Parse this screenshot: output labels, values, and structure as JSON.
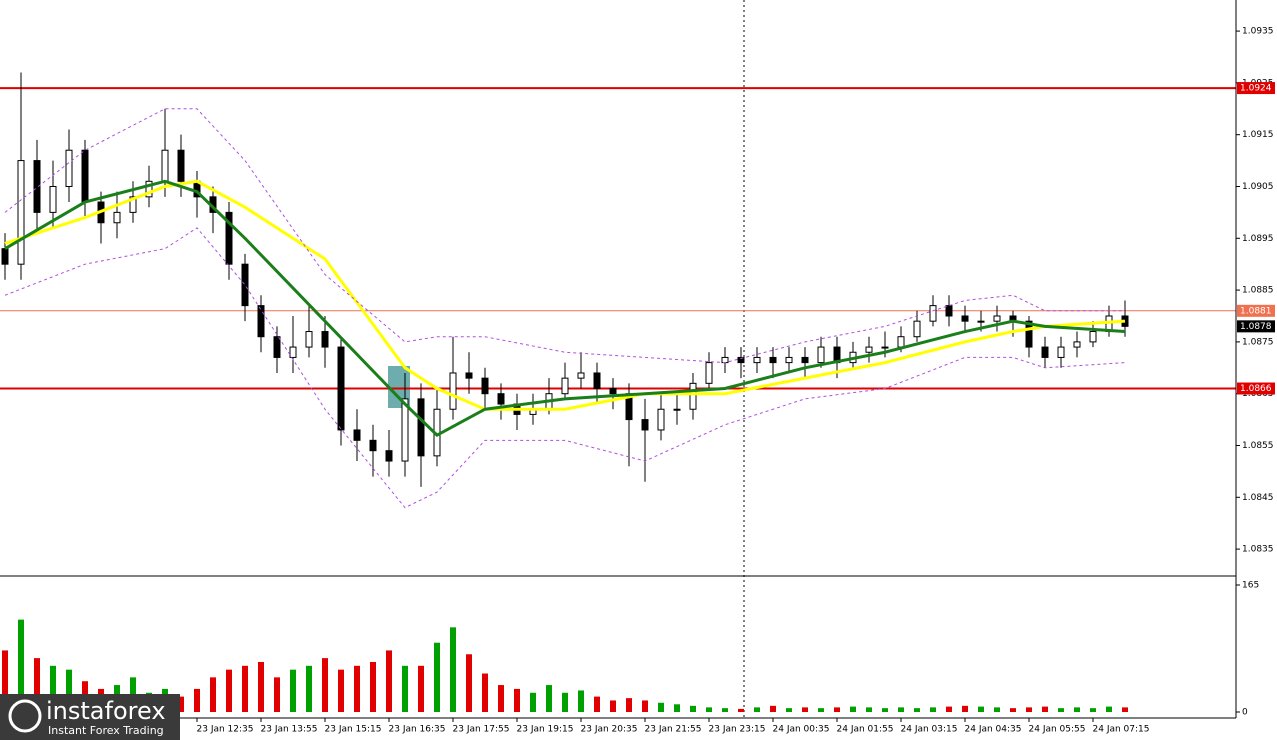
{
  "chart_data": {
    "type": "candlestick",
    "ylim": [
      1.083,
      1.0941
    ],
    "yticks": [
      1.0835,
      1.0845,
      1.0855,
      1.0865,
      1.0875,
      1.0885,
      1.0895,
      1.0905,
      1.0915,
      1.0925,
      1.0935
    ],
    "open": [
      1.0893,
      1.089,
      1.091,
      1.09,
      1.0905,
      1.0912,
      1.0902,
      1.0898,
      1.09,
      1.0903,
      1.0906,
      1.0912,
      1.0906,
      1.0903,
      1.09,
      1.089,
      1.0882,
      1.0876,
      1.0872,
      1.0874,
      1.0877,
      1.0874,
      1.0858,
      1.0856,
      1.0854,
      1.0852,
      1.0864,
      1.0853,
      1.0862,
      1.0869,
      1.0868,
      1.0865,
      1.0863,
      1.0861,
      1.0862,
      1.0865,
      1.0868,
      1.0869,
      1.0866,
      1.0865,
      1.086,
      1.0858,
      1.0862,
      1.0862,
      1.0867,
      1.0871,
      1.0872,
      1.0871,
      1.0872,
      1.0871,
      1.0872,
      1.0871,
      1.0874,
      1.0871,
      1.0873,
      1.0874,
      1.0874,
      1.0876,
      1.0879,
      1.0882,
      1.088,
      1.0879,
      1.0879,
      1.088,
      1.0879,
      1.0874,
      1.0872,
      1.0874,
      1.0875,
      1.0877,
      1.088
    ],
    "high": [
      1.0896,
      1.0927,
      1.0914,
      1.091,
      1.0916,
      1.0914,
      1.0904,
      1.0904,
      1.0906,
      1.0909,
      1.092,
      1.0915,
      1.0908,
      1.0905,
      1.0902,
      1.0892,
      1.0884,
      1.0878,
      1.088,
      1.0882,
      1.088,
      1.0876,
      1.0862,
      1.0859,
      1.0858,
      1.0869,
      1.0867,
      1.0866,
      1.0876,
      1.0873,
      1.087,
      1.0867,
      1.0865,
      1.0865,
      1.0868,
      1.0871,
      1.0873,
      1.0871,
      1.0868,
      1.0867,
      1.0864,
      1.0865,
      1.0865,
      1.0869,
      1.0873,
      1.0874,
      1.0874,
      1.0874,
      1.0874,
      1.0874,
      1.0874,
      1.0876,
      1.0876,
      1.0875,
      1.0876,
      1.0877,
      1.0878,
      1.0881,
      1.0884,
      1.0884,
      1.0882,
      1.0881,
      1.0882,
      1.0881,
      1.088,
      1.0876,
      1.0876,
      1.0877,
      1.0879,
      1.0882,
      1.0883
    ],
    "low": [
      1.0887,
      1.0887,
      1.0896,
      1.0897,
      1.0902,
      1.0899,
      1.0894,
      1.0895,
      1.0898,
      1.0901,
      1.0903,
      1.0903,
      1.0899,
      1.0896,
      1.0887,
      1.0879,
      1.0873,
      1.0869,
      1.0869,
      1.0872,
      1.087,
      1.0855,
      1.0852,
      1.0849,
      1.0849,
      1.0849,
      1.0847,
      1.0851,
      1.086,
      1.0865,
      1.0862,
      1.086,
      1.0858,
      1.0859,
      1.0861,
      1.0864,
      1.0866,
      1.0863,
      1.0862,
      1.0851,
      1.0848,
      1.0856,
      1.0859,
      1.086,
      1.0866,
      1.0869,
      1.0868,
      1.0869,
      1.0868,
      1.0869,
      1.0868,
      1.087,
      1.0868,
      1.087,
      1.0871,
      1.0872,
      1.0873,
      1.0875,
      1.0878,
      1.0878,
      1.0877,
      1.0877,
      1.0877,
      1.0876,
      1.0872,
      1.087,
      1.087,
      1.0872,
      1.0874,
      1.0876,
      1.0876
    ],
    "close": [
      1.089,
      1.091,
      1.09,
      1.0905,
      1.0912,
      1.0902,
      1.0898,
      1.09,
      1.0903,
      1.0906,
      1.0912,
      1.0906,
      1.0903,
      1.09,
      1.089,
      1.0882,
      1.0876,
      1.0872,
      1.0874,
      1.0877,
      1.0874,
      1.0858,
      1.0856,
      1.0854,
      1.0852,
      1.0864,
      1.0853,
      1.0862,
      1.0869,
      1.0868,
      1.0865,
      1.0863,
      1.0861,
      1.0862,
      1.0865,
      1.0868,
      1.0869,
      1.0866,
      1.0865,
      1.086,
      1.0858,
      1.0862,
      1.0862,
      1.0867,
      1.0871,
      1.0872,
      1.0871,
      1.0872,
      1.0871,
      1.0872,
      1.0871,
      1.0874,
      1.0871,
      1.0873,
      1.0874,
      1.0874,
      1.0876,
      1.0879,
      1.0882,
      1.088,
      1.0879,
      1.0879,
      1.088,
      1.0879,
      1.0874,
      1.0872,
      1.0874,
      1.0875,
      1.0877,
      1.088,
      1.0878
    ],
    "volume": {
      "values": [
        80,
        120,
        70,
        60,
        55,
        40,
        30,
        35,
        45,
        25,
        30,
        20,
        30,
        45,
        55,
        60,
        65,
        45,
        55,
        60,
        70,
        55,
        60,
        65,
        80,
        60,
        60,
        90,
        110,
        75,
        50,
        35,
        30,
        25,
        35,
        25,
        28,
        20,
        15,
        18,
        15,
        12,
        10,
        8,
        6,
        5,
        4,
        6,
        8,
        5,
        6,
        5,
        6,
        7,
        6,
        5,
        6,
        5,
        6,
        7,
        8,
        7,
        6,
        5,
        6,
        7,
        5,
        6,
        5,
        7,
        6
      ],
      "ylim": [
        0,
        165
      ],
      "yticks": [
        0,
        165
      ],
      "up_color": "#00a000",
      "down_color": "#e00000"
    },
    "lines": [
      {
        "color": "#ffff00",
        "width": 3,
        "dash": false,
        "x": [
          0,
          5,
          10,
          12,
          15,
          20,
          25,
          27,
          30,
          35,
          40,
          45,
          50,
          55,
          60,
          63,
          65,
          70
        ],
        "values": [
          1.0894,
          1.0899,
          1.0905,
          1.0906,
          1.0901,
          1.0891,
          1.087,
          1.0866,
          1.0862,
          1.0862,
          1.0865,
          1.0865,
          1.0868,
          1.0871,
          1.0875,
          1.0877,
          1.0878,
          1.0879
        ]
      },
      {
        "color": "#1a7f1a",
        "width": 3,
        "dash": false,
        "x": [
          0,
          5,
          10,
          12,
          15,
          20,
          25,
          27,
          30,
          35,
          40,
          45,
          50,
          55,
          60,
          63,
          65,
          70
        ],
        "values": [
          1.0893,
          1.0902,
          1.0906,
          1.0904,
          1.0895,
          1.0879,
          1.0863,
          1.0857,
          1.0862,
          1.0864,
          1.0865,
          1.0866,
          1.087,
          1.0873,
          1.0877,
          1.0879,
          1.0878,
          1.0877
        ]
      },
      {
        "color": "#b04fe0",
        "width": 1,
        "dash": true,
        "x": [
          0,
          5,
          10,
          12,
          15,
          20,
          25,
          27,
          30,
          35,
          40,
          45,
          50,
          55,
          60,
          63,
          65,
          70
        ],
        "values": [
          1.09,
          1.0912,
          1.092,
          1.092,
          1.091,
          1.0888,
          1.0875,
          1.0876,
          1.0876,
          1.0873,
          1.0872,
          1.0871,
          1.0875,
          1.0878,
          1.0883,
          1.0884,
          1.0881,
          1.0881
        ]
      },
      {
        "color": "#b04fe0",
        "width": 1,
        "dash": true,
        "x": [
          0,
          5,
          10,
          12,
          15,
          20,
          25,
          27,
          30,
          35,
          40,
          45,
          50,
          55,
          60,
          63,
          65,
          70
        ],
        "values": [
          1.0884,
          1.089,
          1.0893,
          1.0897,
          1.0886,
          1.0862,
          1.0843,
          1.0846,
          1.0856,
          1.0856,
          1.0852,
          1.0859,
          1.0864,
          1.0866,
          1.0872,
          1.0872,
          1.087,
          1.0871
        ]
      }
    ],
    "levels": [
      {
        "value": 1.0924,
        "color": "#e00000"
      },
      {
        "value": 1.0881,
        "color": "#f07050"
      },
      {
        "value": 1.0866,
        "color": "#e00000"
      }
    ],
    "current_price": 1.0878,
    "x_labels": [
      "23 Jan 12:35",
      "23 Jan 13:55",
      "23 Jan 15:15",
      "23 Jan 16:35",
      "23 Jan 17:55",
      "23 Jan 19:15",
      "23 Jan 20:35",
      "23 Jan 21:55",
      "23 Jan 23:15",
      "24 Jan 00:35",
      "24 Jan 01:55",
      "24 Jan 03:15",
      "24 Jan 04:35",
      "24 Jan 05:55",
      "24 Jan 07:15"
    ]
  },
  "logo": {
    "name": "instaforex",
    "tagline": "Instant Forex Trading"
  }
}
